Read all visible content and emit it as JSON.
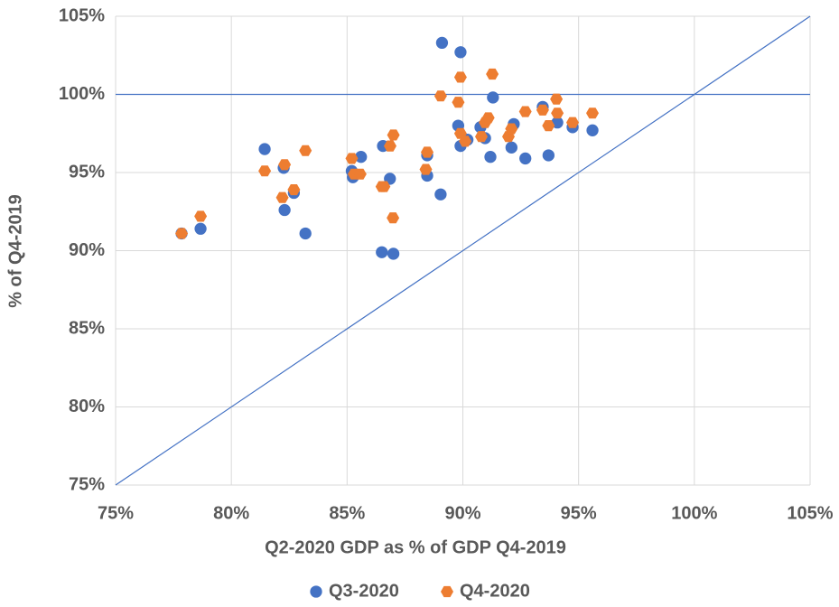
{
  "chart_data": {
    "type": "scatter",
    "xlabel": "Q2-2020 GDP as % of GDP Q4-2019",
    "ylabel": "% of Q4-2019",
    "xlim": [
      75,
      105
    ],
    "ylim": [
      75,
      105
    ],
    "xticks": [
      {
        "value": 75,
        "label": "75%"
      },
      {
        "value": 80,
        "label": "80%"
      },
      {
        "value": 85,
        "label": "85%"
      },
      {
        "value": 90,
        "label": "90%"
      },
      {
        "value": 95,
        "label": "95%"
      },
      {
        "value": 100,
        "label": "100%"
      },
      {
        "value": 105,
        "label": "105%"
      }
    ],
    "yticks": [
      {
        "value": 75,
        "label": "75%"
      },
      {
        "value": 80,
        "label": "80%"
      },
      {
        "value": 85,
        "label": "85%"
      },
      {
        "value": 90,
        "label": "90%"
      },
      {
        "value": 95,
        "label": "95%"
      },
      {
        "value": 100,
        "label": "100%"
      },
      {
        "value": 105,
        "label": "105%"
      }
    ],
    "grid": true,
    "hline": 100,
    "diagonal": true,
    "legend": "bottom",
    "series": [
      {
        "name": "Q3-2020",
        "color": "#4472c4",
        "marker": "circle",
        "x": [
          77.85,
          78.67,
          81.44,
          82.26,
          82.3,
          82.7,
          83.2,
          85.2,
          85.25,
          85.6,
          86.55,
          86.5,
          86.85,
          87.0,
          88.46,
          88.46,
          89.04,
          89.1,
          89.9,
          89.8,
          89.9,
          90.2,
          90.76,
          90.96,
          91.19,
          91.3,
          92.1,
          92.2,
          92.7,
          93.45,
          93.7,
          94.08,
          94.74,
          95.6
        ],
        "values": [
          91.1,
          91.4,
          96.5,
          95.3,
          92.6,
          93.7,
          91.1,
          95.1,
          94.7,
          96.0,
          96.7,
          89.9,
          94.6,
          89.8,
          96.1,
          94.8,
          93.6,
          103.3,
          102.7,
          98.0,
          96.7,
          97.1,
          97.9,
          97.2,
          96.0,
          99.8,
          96.6,
          98.1,
          95.9,
          99.2,
          96.1,
          98.2,
          97.9,
          97.7
        ]
      },
      {
        "name": "Q4-2020",
        "color": "#ed7d31",
        "marker": "hexagon",
        "x": [
          77.85,
          78.67,
          81.44,
          82.3,
          82.2,
          82.7,
          83.2,
          85.2,
          85.3,
          85.57,
          86.5,
          86.6,
          86.86,
          87.0,
          86.98,
          88.46,
          88.4,
          89.04,
          89.9,
          89.8,
          89.9,
          90.1,
          90.8,
          90.96,
          91.1,
          91.27,
          91.97,
          92.1,
          92.7,
          93.45,
          93.7,
          94.04,
          94.08,
          94.74,
          95.6
        ],
        "values": [
          91.1,
          92.2,
          95.1,
          95.5,
          93.4,
          93.9,
          96.4,
          95.9,
          94.9,
          94.9,
          94.1,
          94.1,
          96.7,
          97.4,
          92.1,
          96.3,
          95.2,
          99.9,
          101.1,
          99.5,
          97.5,
          97.0,
          97.3,
          98.2,
          98.5,
          101.3,
          97.3,
          97.8,
          98.9,
          99.0,
          98.0,
          99.7,
          98.8,
          98.2,
          98.8
        ]
      }
    ]
  }
}
